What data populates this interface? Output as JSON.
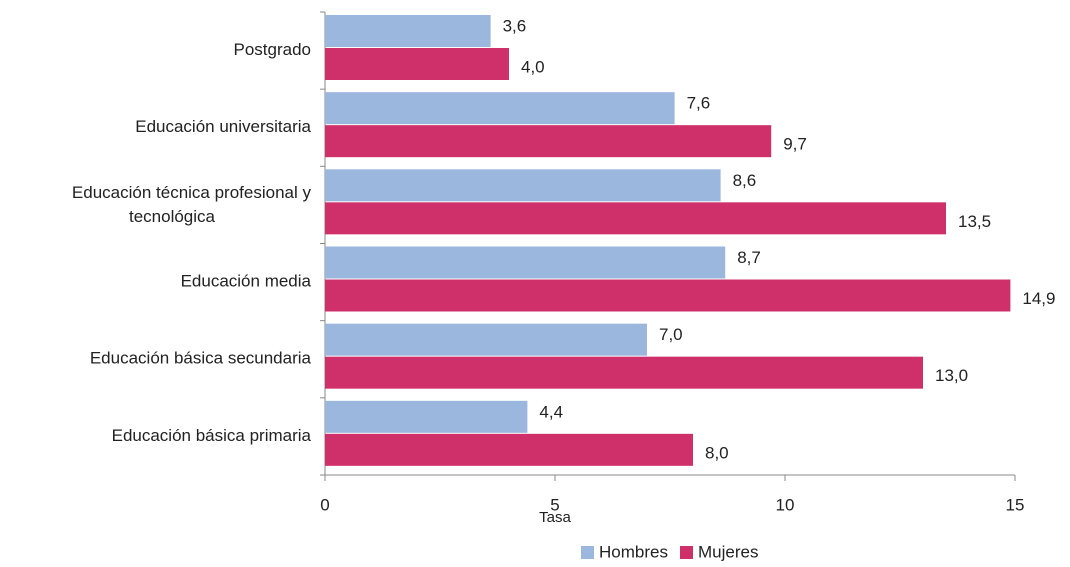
{
  "chart_data": {
    "type": "hbar",
    "x_label": "Tasa",
    "categories": [
      "Postgrado",
      "Educación universitaria",
      "Educación técnica profesional y tecnológica",
      "Educación media",
      "Educación básica secundaria",
      "Educación básica primaria"
    ],
    "series": [
      {
        "name": "Hombres",
        "color": "#9bb7dd",
        "values": [
          3.6,
          7.6,
          8.6,
          8.7,
          7.0,
          4.4
        ],
        "value_labels": [
          "3,6",
          "7,6",
          "8,6",
          "8,7",
          "7,0",
          "4,4"
        ]
      },
      {
        "name": "Mujeres",
        "color": "#d0306a",
        "values": [
          4.0,
          9.7,
          13.5,
          14.9,
          13.0,
          8.0
        ],
        "value_labels": [
          "4,0",
          "9,7",
          "13,5",
          "14,9",
          "13,0",
          "8,0"
        ]
      }
    ],
    "xlim": [
      0,
      15
    ],
    "xticks": [
      0,
      5,
      10,
      15
    ],
    "grid": false,
    "legend": "bottom"
  }
}
